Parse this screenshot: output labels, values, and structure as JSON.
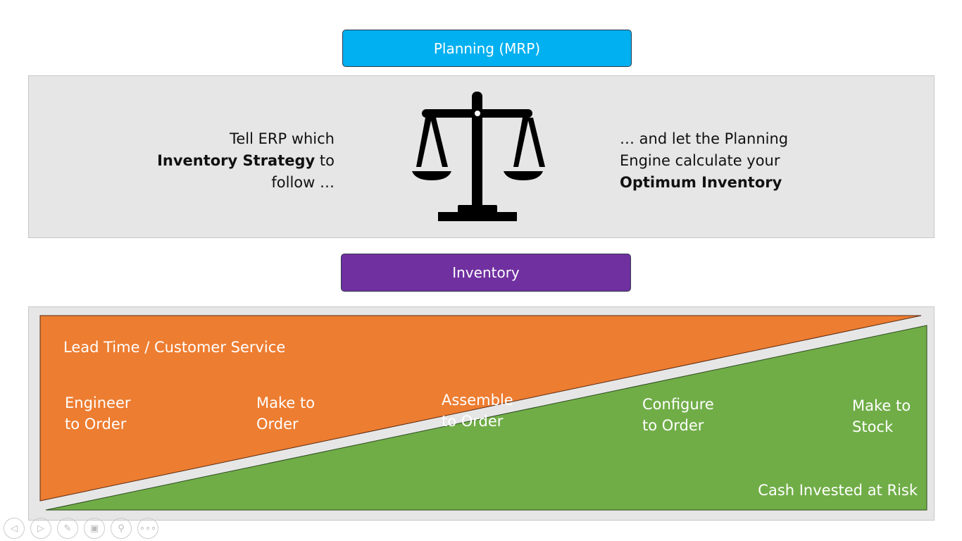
{
  "planning": {
    "label": "Planning (MRP)",
    "color": "#00b0f0"
  },
  "left_text": {
    "line1": "Tell ERP which",
    "bold": "Inventory Strategy",
    "line2_rest": " to",
    "line3": "follow …"
  },
  "right_text": {
    "line1": "… and let the Planning",
    "line2": "Engine calculate your",
    "bold": "Optimum Inventory"
  },
  "inventory": {
    "label": "Inventory",
    "color": "#7030a0"
  },
  "diagram": {
    "top_label": "Lead Time / Customer Service",
    "bottom_label": "Cash Invested at Risk",
    "orange": "#ed7d31",
    "green": "#70ad47",
    "strategies": [
      {
        "l1": "Engineer",
        "l2": "to Order"
      },
      {
        "l1": "Make to",
        "l2": "Order"
      },
      {
        "l1": "Assemble",
        "l2": "to Order"
      },
      {
        "l1": "Configure",
        "l2": "to Order"
      },
      {
        "l1": "Make to",
        "l2": "Stock"
      }
    ]
  },
  "controls": [
    "previous-icon",
    "next-icon",
    "pen-icon",
    "slides-icon",
    "zoom-icon",
    "more-icon"
  ]
}
